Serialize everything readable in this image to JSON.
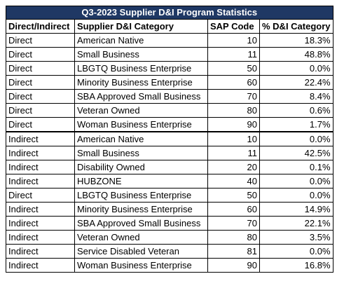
{
  "title": "Q3-2023 Supplier D&I Program Statistics",
  "headers": [
    "Direct/Indirect",
    "Supplier D&I Category",
    "SAP Code",
    "% D&I Category"
  ],
  "rows": [
    [
      "Direct",
      "American Native",
      "10",
      "18.3%"
    ],
    [
      "Direct",
      "Small Business",
      "11",
      "48.8%"
    ],
    [
      "Direct",
      "LBGTQ Business Enterprise",
      "50",
      "0.0%"
    ],
    [
      "Direct",
      "Minority Business Enterprise",
      "60",
      "22.4%"
    ],
    [
      "Direct",
      "SBA Approved Small Business",
      "70",
      "8.4%"
    ],
    [
      "Direct",
      "Veteran Owned",
      "80",
      "0.6%"
    ],
    [
      "Direct",
      "Woman Business Enterprise",
      "90",
      "1.7%"
    ],
    [
      "Indirect",
      "American Native",
      "10",
      "0.0%"
    ],
    [
      "Indirect",
      "Small Business",
      "11",
      "42.5%"
    ],
    [
      "Indirect",
      "Disability Owned",
      "20",
      "0.1%"
    ],
    [
      "Indirect",
      "HUBZONE",
      "40",
      "0.0%"
    ],
    [
      "Direct",
      "LBGTQ Business Enterprise",
      "50",
      "0.0%"
    ],
    [
      "Indirect",
      "Minority Business Enterprise",
      "60",
      "14.9%"
    ],
    [
      "Indirect",
      "SBA Approved Small Business",
      "70",
      "22.1%"
    ],
    [
      "Indirect",
      "Veteran Owned",
      "80",
      "3.5%"
    ],
    [
      "Indirect",
      "Service Disabled Veteran",
      "81",
      "0.0%"
    ],
    [
      "Indirect",
      "Woman Business Enterprise",
      "90",
      "16.8%"
    ]
  ],
  "colors": {
    "title_bg": "#1f3864",
    "title_text": "#ffffff"
  }
}
